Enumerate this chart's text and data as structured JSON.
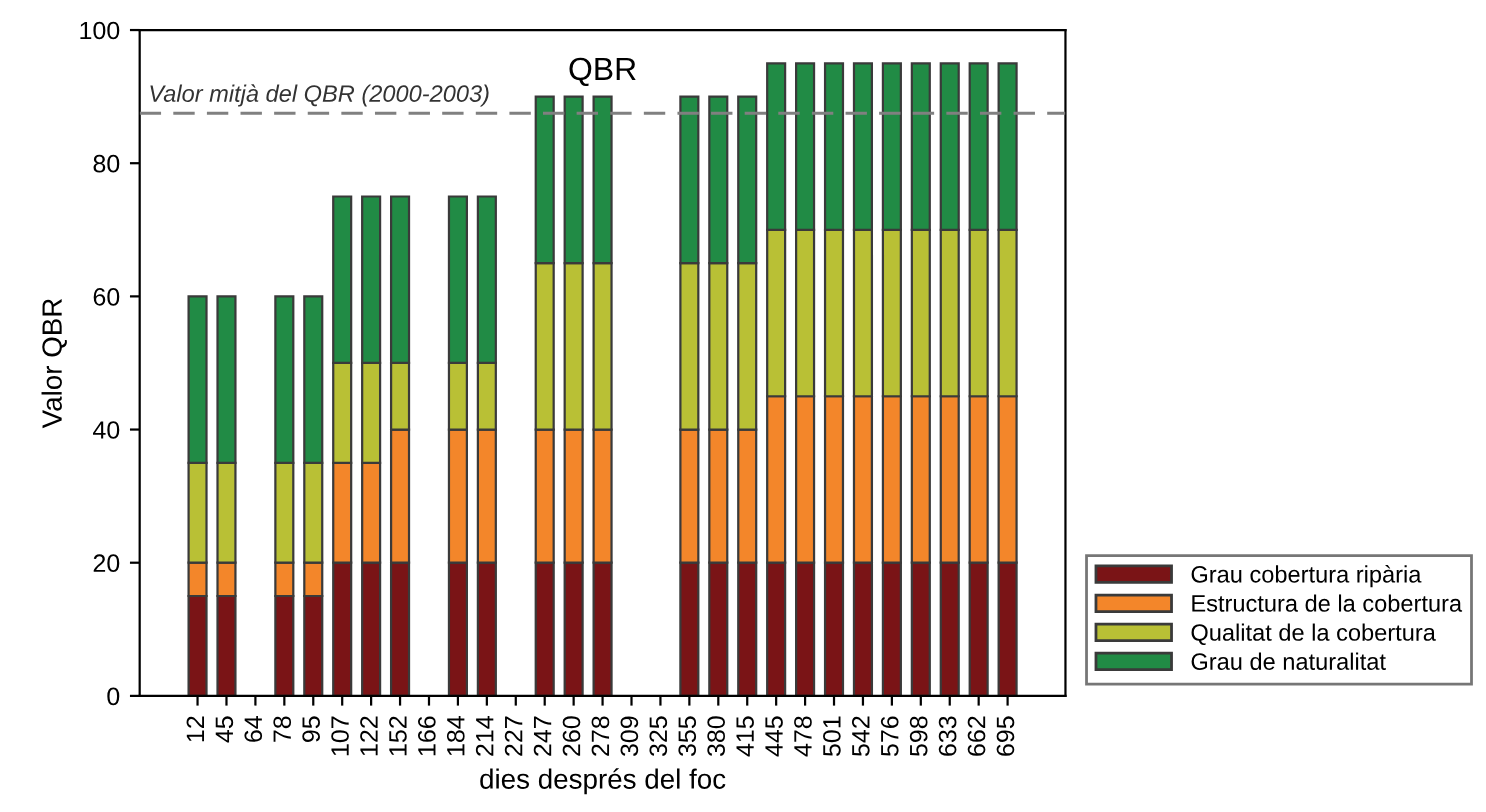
{
  "chart_data": {
    "type": "bar",
    "stacked": true,
    "title": "QBR",
    "xlabel": "dies després del foc",
    "ylabel": "Valor QBR",
    "categories": [
      "12",
      "45",
      "64",
      "78",
      "95",
      "107",
      "122",
      "152",
      "166",
      "184",
      "214",
      "227",
      "247",
      "260",
      "278",
      "309",
      "325",
      "355",
      "380",
      "415",
      "445",
      "478",
      "501",
      "542",
      "576",
      "598",
      "633",
      "662",
      "695"
    ],
    "series": [
      {
        "name": "Grau cobertura ripària",
        "color": "#7a1416",
        "values": [
          15,
          15,
          null,
          15,
          15,
          20,
          20,
          20,
          null,
          20,
          20,
          null,
          20,
          20,
          20,
          null,
          null,
          20,
          20,
          20,
          20,
          20,
          20,
          20,
          20,
          20,
          20,
          20,
          20
        ]
      },
      {
        "name": "Estructura de la cobertura",
        "color": "#f3862a",
        "values": [
          5,
          5,
          null,
          5,
          5,
          15,
          15,
          20,
          null,
          20,
          20,
          null,
          20,
          20,
          20,
          null,
          null,
          20,
          20,
          20,
          25,
          25,
          25,
          25,
          25,
          25,
          25,
          25,
          25
        ]
      },
      {
        "name": "Qualitat de la cobertura",
        "color": "#b9c035",
        "values": [
          15,
          15,
          null,
          15,
          15,
          15,
          15,
          10,
          null,
          10,
          10,
          null,
          25,
          25,
          25,
          null,
          null,
          25,
          25,
          25,
          25,
          25,
          25,
          25,
          25,
          25,
          25,
          25,
          25
        ]
      },
      {
        "name": "Grau de naturalitat",
        "color": "#218b45",
        "values": [
          25,
          25,
          null,
          25,
          25,
          25,
          25,
          25,
          null,
          25,
          25,
          null,
          25,
          25,
          25,
          null,
          null,
          25,
          25,
          25,
          25,
          25,
          25,
          25,
          25,
          25,
          25,
          25,
          25
        ]
      }
    ],
    "ylim": [
      0,
      100
    ],
    "yticks": [
      0,
      20,
      40,
      60,
      80,
      100
    ],
    "ref_lines": [
      {
        "axis": "y",
        "value": 87.5,
        "label": "Valor mitjà del QBR (2000-2003)",
        "color": "#808080",
        "line_style": "dashed"
      }
    ],
    "legend": "bottom right",
    "grid": false
  }
}
